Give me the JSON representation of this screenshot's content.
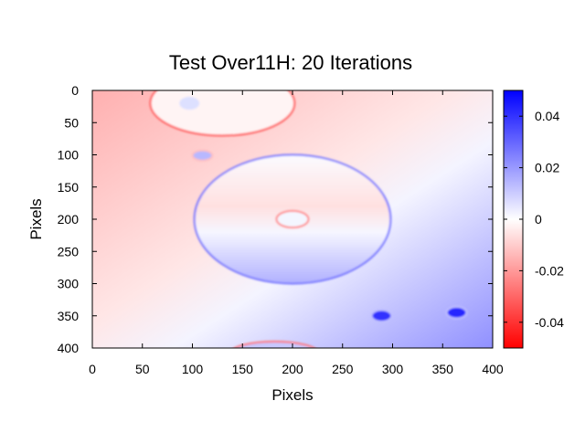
{
  "chart_data": {
    "type": "heatmap",
    "title": "Test Over11H: 20 Iterations",
    "xlabel": "Pixels",
    "ylabel": "Pixels",
    "xlim": [
      0,
      400
    ],
    "ylim": [
      400,
      0
    ],
    "xticks": [
      "0",
      "50",
      "100",
      "150",
      "200",
      "250",
      "300",
      "350",
      "400"
    ],
    "yticks": [
      "0",
      "50",
      "100",
      "150",
      "200",
      "250",
      "300",
      "350",
      "400"
    ],
    "colorbar": {
      "range": [
        -0.05,
        0.05
      ],
      "ticks": [
        "0.04",
        "0.02",
        "0",
        "-0.02",
        "-0.04"
      ],
      "tick_values": [
        0.04,
        0.02,
        0,
        -0.02,
        -0.04
      ],
      "low_color": "#ff0000",
      "mid_color": "#ffffff",
      "high_color": "#0000ff"
    }
  }
}
